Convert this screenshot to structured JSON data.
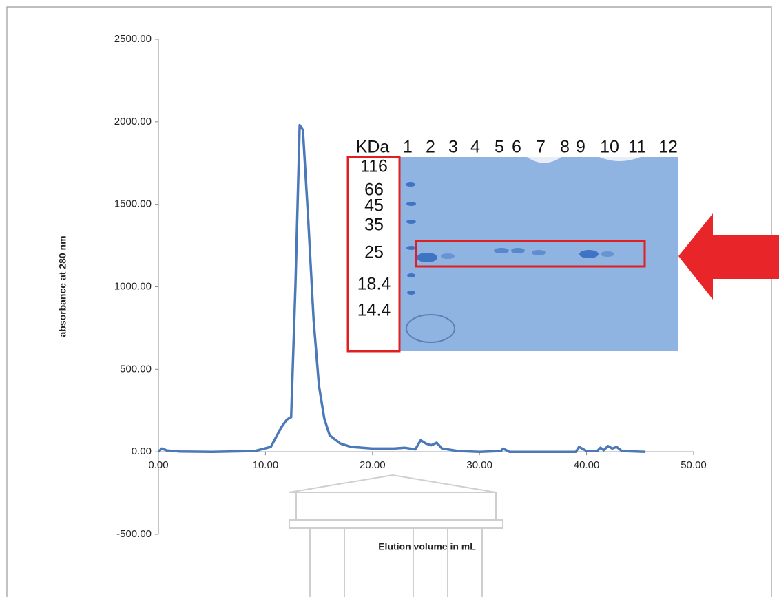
{
  "chart_data": {
    "type": "line",
    "y_label": "absorbance at 280 nm",
    "x_label": "Elution volume in mL",
    "xlim": [
      0,
      50
    ],
    "ylim": [
      -500,
      2500
    ],
    "xticks": [
      {
        "value": 0,
        "label": "0.00"
      },
      {
        "value": 10,
        "label": "10.00"
      },
      {
        "value": 20,
        "label": "20.00"
      },
      {
        "value": 30,
        "label": "30.00"
      },
      {
        "value": 40,
        "label": "40.00"
      },
      {
        "value": 50,
        "label": "50.00"
      }
    ],
    "yticks": [
      {
        "value": -500,
        "label": "-500.00"
      },
      {
        "value": 0,
        "label": "0.00"
      },
      {
        "value": 500,
        "label": "500.00"
      },
      {
        "value": 1000,
        "label": "1000.00"
      },
      {
        "value": 1500,
        "label": "1500.00"
      },
      {
        "value": 2000,
        "label": "2000.00"
      },
      {
        "value": 2500,
        "label": "2500.00"
      }
    ],
    "grid": false,
    "series": [
      {
        "color": "#4a78b8",
        "x": [
          0,
          0.3,
          0.8,
          2,
          5,
          9,
          10.5,
          11.5,
          12,
          12.4,
          12.8,
          13.2,
          13.5,
          14,
          14.5,
          15,
          15.5,
          16,
          17,
          18,
          20,
          22,
          23,
          24,
          24.5,
          25,
          25.5,
          26,
          26.5,
          28,
          30,
          32,
          32.2,
          32.8,
          39,
          39.3,
          40,
          41,
          41.3,
          41.6,
          42,
          42.4,
          42.8,
          43.3,
          45.5
        ],
        "values": [
          0,
          20,
          8,
          2,
          0,
          5,
          30,
          150,
          195,
          210,
          1000,
          1980,
          1950,
          1400,
          800,
          400,
          200,
          100,
          50,
          30,
          20,
          20,
          25,
          15,
          70,
          50,
          40,
          55,
          20,
          5,
          0,
          5,
          20,
          0,
          0,
          30,
          5,
          5,
          25,
          10,
          35,
          20,
          30,
          5,
          0
        ]
      }
    ]
  },
  "gel": {
    "unit_label": "KDa",
    "lanes": [
      "1",
      "2",
      "3",
      "4",
      "5",
      "6",
      "7",
      "8",
      "9",
      "10",
      "11",
      "12"
    ],
    "markers": [
      "116",
      "66",
      "45",
      "35",
      "25",
      "18.4",
      "14.4"
    ]
  }
}
